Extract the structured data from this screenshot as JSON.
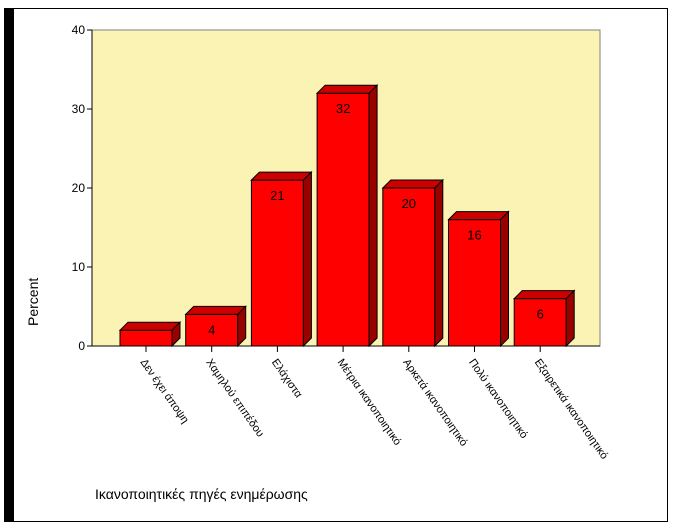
{
  "chart_data": {
    "type": "bar",
    "categories": [
      "Δεν έχει άποψη",
      "Χαμηλού επιπέδου",
      "Ελάχιστα",
      "Μέτρια ικανοποιητικό",
      "Αρκετά ικανοποιητικό",
      "Πολύ ικανοποιητικό",
      "Εξαιρετικά ικανοποιητικό"
    ],
    "values": [
      2,
      4,
      21,
      32,
      20,
      16,
      6
    ],
    "data_labels": [
      "",
      "4",
      "21",
      "32",
      "20",
      "16",
      "6"
    ],
    "xlabel": "Ικανοποιητικές πηγές ενημέρωσης",
    "ylabel": "Percent",
    "ylim": [
      0,
      40
    ],
    "yticks": [
      "0",
      "10",
      "20",
      "30",
      "40"
    ],
    "grid": false,
    "colors": {
      "plot_bg": "#fbf3b4",
      "bar_front": "#ff0000",
      "bar_top": "#cc0000",
      "bar_side": "#990000",
      "outline": "#000000"
    }
  }
}
